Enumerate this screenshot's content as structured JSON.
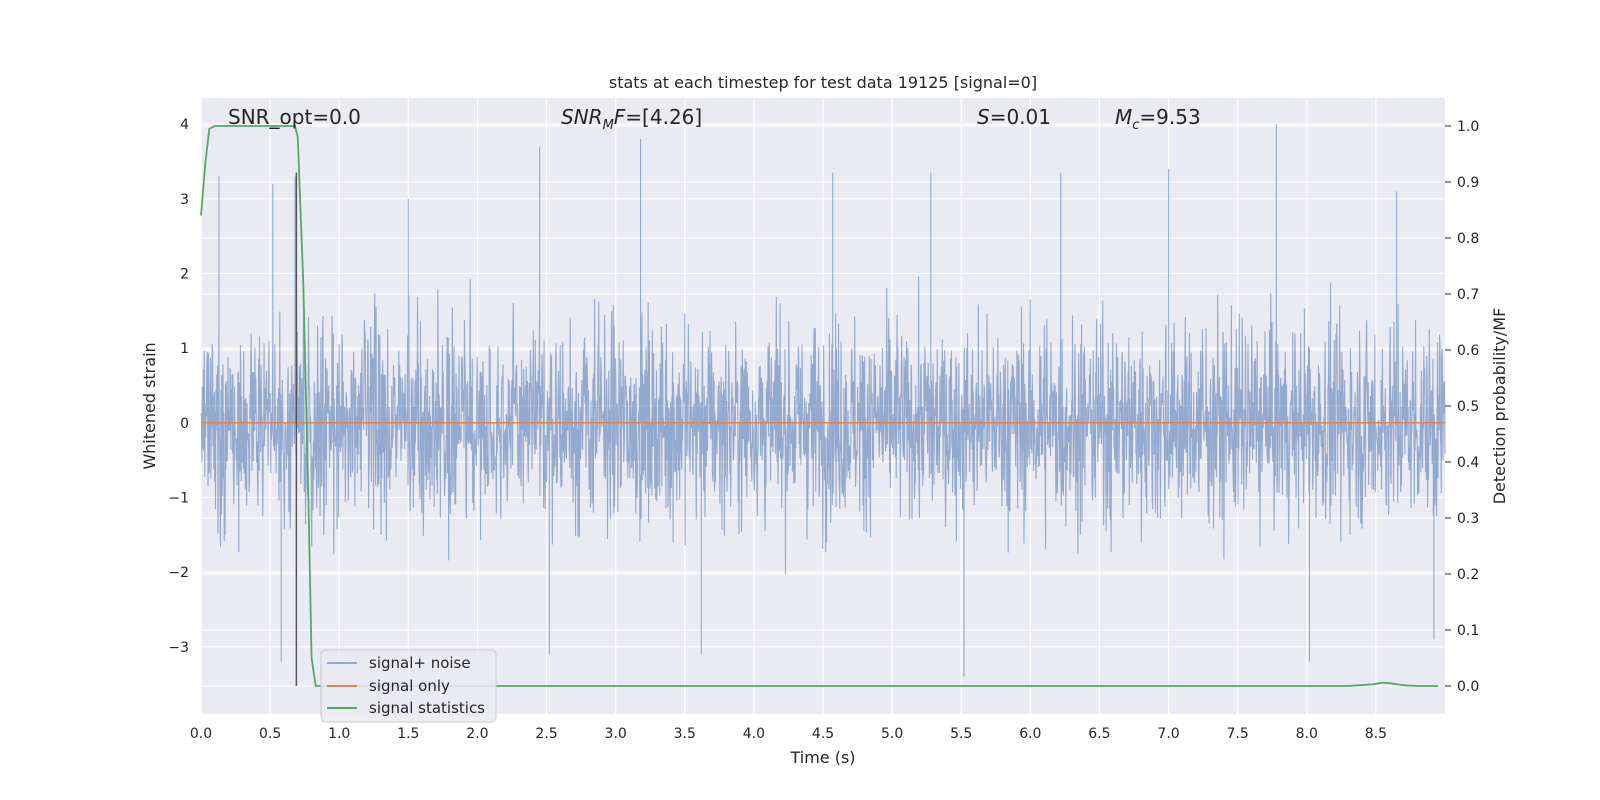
{
  "chart_data": {
    "type": "line",
    "title": "stats at each timestep for test data 19125 [signal=0]",
    "xlabel": "Time (s)",
    "ylabel": "Whitened strain",
    "y2label": "Detection probability/MF",
    "xlim": [
      0.0,
      9.0
    ],
    "ylim": [
      -3.9,
      4.35
    ],
    "y2lim": [
      -0.05,
      1.05
    ],
    "xticks": [
      "0.0",
      "0.5",
      "1.0",
      "1.5",
      "2.0",
      "2.5",
      "3.0",
      "3.5",
      "4.0",
      "4.5",
      "5.0",
      "5.5",
      "6.0",
      "6.5",
      "7.0",
      "7.5",
      "8.0",
      "8.5"
    ],
    "yticks": [
      "4",
      "3",
      "2",
      "1",
      "0",
      "−1",
      "−2",
      "−3"
    ],
    "y2ticks": [
      "1.0",
      "0.9",
      "0.8",
      "0.7",
      "0.6",
      "0.5",
      "0.4",
      "0.3",
      "0.2",
      "0.1",
      "0.0"
    ],
    "grid": true,
    "legend_position": "lower-left",
    "annotations": {
      "snr_opt": "SNR_opt=0.0",
      "snr_mf_main": "SNR",
      "snr_mf_sub": "M",
      "snr_mf_tail": "F",
      "snr_mf_value": "=[4.26]",
      "s_symbol": "S",
      "s_value": "=0.01",
      "mc_main": "M",
      "mc_sub": "c",
      "mc_value": "=9.53"
    },
    "marker_line_x": 0.69,
    "series": [
      {
        "name": "signal+ noise",
        "color": "#4c72b0",
        "axis": "left",
        "description_values": "random noise, approx range -3.4 to 4.0",
        "peaks": [
          [
            0.13,
            3.3
          ],
          [
            0.52,
            3.2
          ],
          [
            0.68,
            3.3
          ],
          [
            0.58,
            -3.2
          ],
          [
            1.5,
            3.0
          ],
          [
            2.45,
            3.7
          ],
          [
            2.52,
            -3.1
          ],
          [
            3.18,
            3.8
          ],
          [
            3.62,
            -3.1
          ],
          [
            4.57,
            3.35
          ],
          [
            5.28,
            3.35
          ],
          [
            5.52,
            -3.4
          ],
          [
            6.22,
            3.35
          ],
          [
            7.0,
            3.4
          ],
          [
            7.78,
            4.0
          ],
          [
            8.02,
            -3.2
          ],
          [
            8.65,
            3.1
          ],
          [
            8.92,
            -2.9
          ]
        ]
      },
      {
        "name": "signal only",
        "color": "#dd8452",
        "axis": "left",
        "x": [
          0.0,
          9.0
        ],
        "y": [
          0.0,
          0.0
        ]
      },
      {
        "name": "signal statistics",
        "color": "#55a868",
        "axis": "right",
        "x": [
          0.0,
          0.03,
          0.06,
          0.1,
          0.2,
          0.4,
          0.6,
          0.68,
          0.7,
          0.74,
          0.78,
          0.8,
          0.83,
          1.0,
          3.0,
          6.0,
          8.3,
          8.48,
          8.55,
          8.6,
          8.65,
          8.72,
          8.8,
          8.95
        ],
        "y": [
          0.84,
          0.93,
          0.995,
          1.0,
          1.0,
          1.0,
          1.0,
          1.0,
          0.98,
          0.72,
          0.3,
          0.05,
          0.0,
          0.0,
          0.0,
          0.0,
          0.0,
          0.003,
          0.006,
          0.005,
          0.003,
          0.001,
          0.0,
          0.0
        ]
      }
    ]
  },
  "legend": {
    "items": [
      "signal+ noise",
      "signal only",
      "signal statistics"
    ]
  }
}
